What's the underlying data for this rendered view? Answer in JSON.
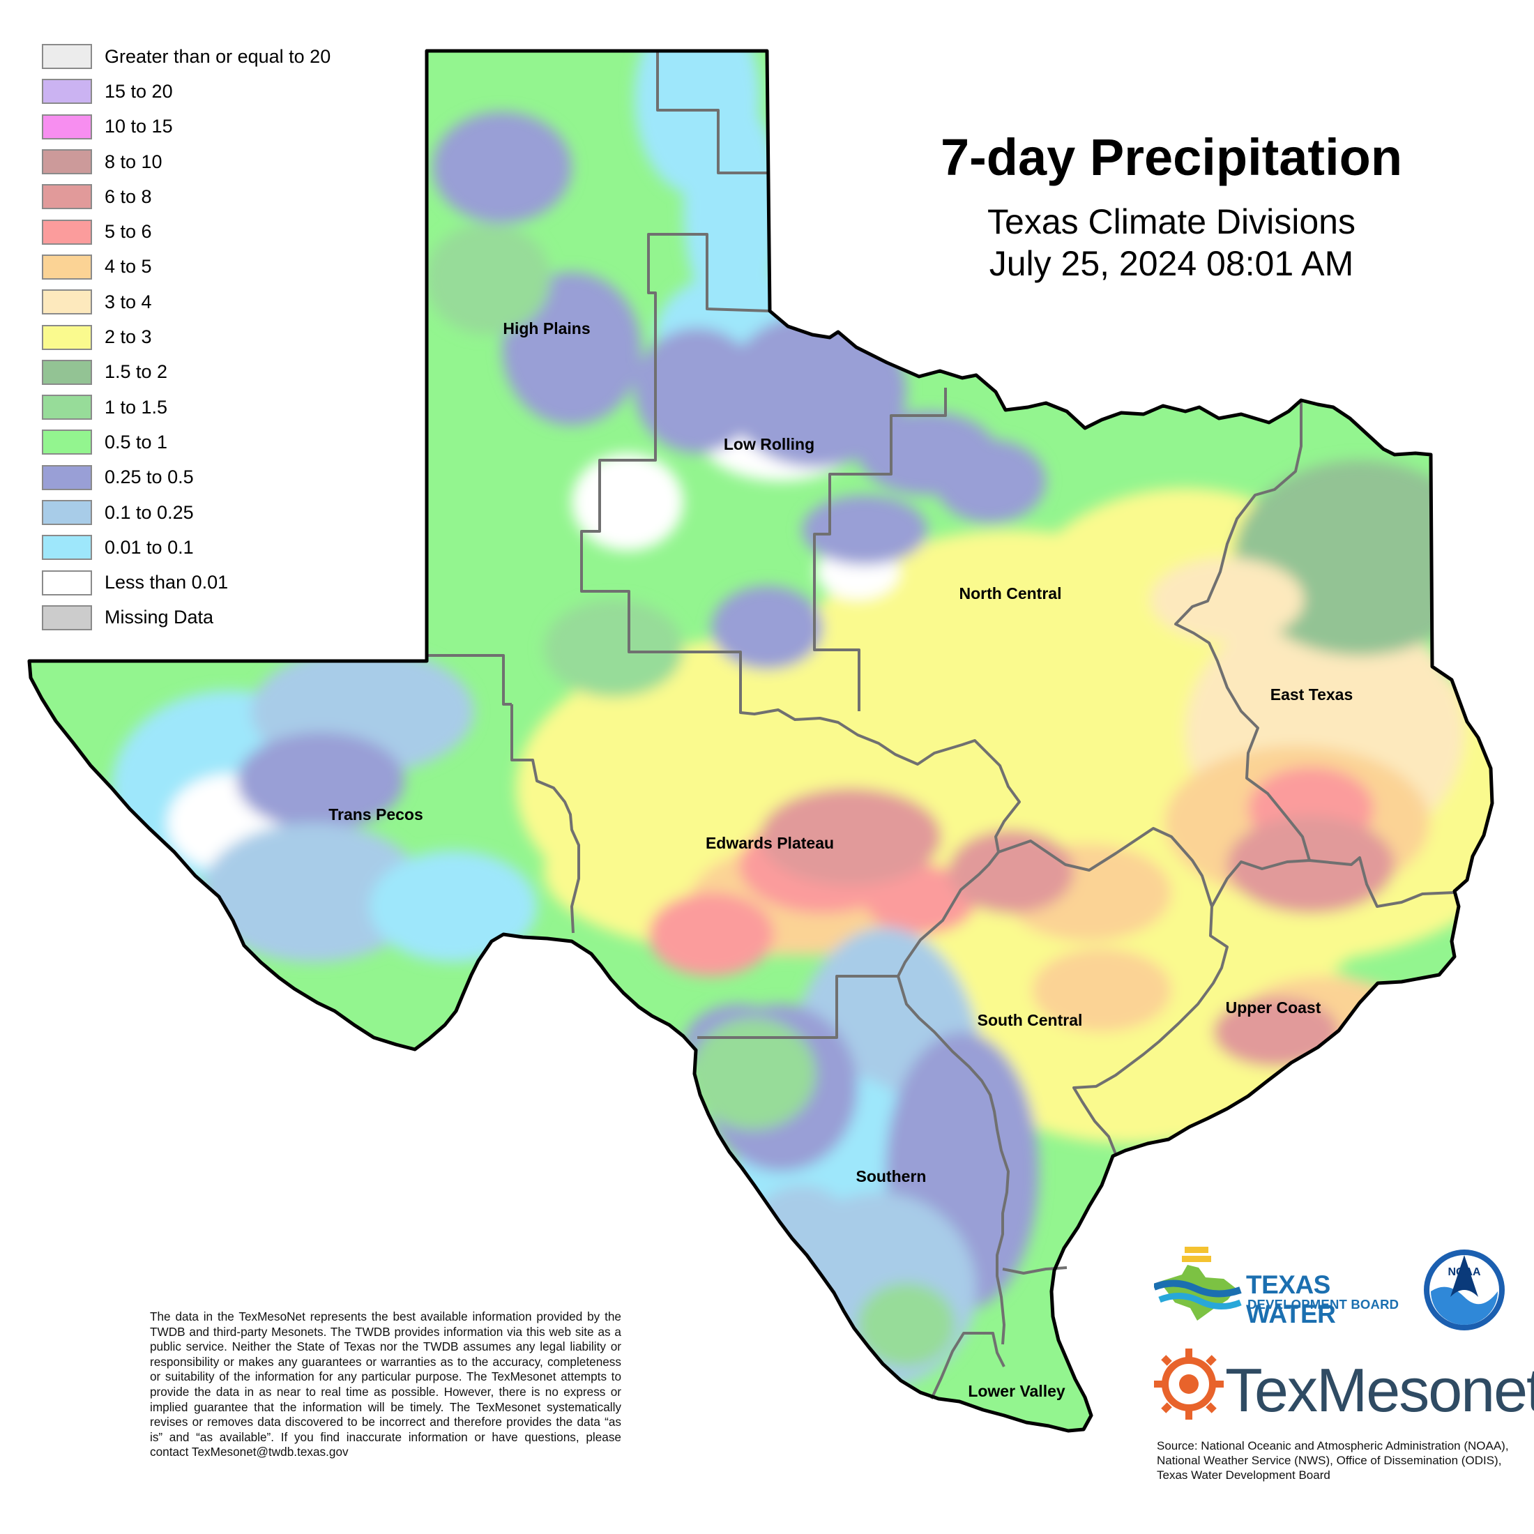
{
  "title": "7-day Precipitation",
  "subtitle": "Texas Climate Divisions",
  "date": "July 25, 2024 08:01 AM",
  "legend": [
    {
      "label": "Greater than or equal to 20",
      "color": "#ececec"
    },
    {
      "label": "15 to 20",
      "color": "#cbb3f2"
    },
    {
      "label": "10 to 15",
      "color": "#f78ef0"
    },
    {
      "label": "8 to 10",
      "color": "#cc9a9a"
    },
    {
      "label": "6 to 8",
      "color": "#e19a9a"
    },
    {
      "label": "5 to 6",
      "color": "#fb9c9c"
    },
    {
      "label": "4 to 5",
      "color": "#fbd395"
    },
    {
      "label": "3 to 4",
      "color": "#fde9bd"
    },
    {
      "label": "2 to 3",
      "color": "#fafa8e"
    },
    {
      "label": "1.5 to 2",
      "color": "#93c394"
    },
    {
      "label": "1 to 1.5",
      "color": "#97dc99"
    },
    {
      "label": "0.5 to 1",
      "color": "#93f58f"
    },
    {
      "label": "0.25 to 0.5",
      "color": "#999fd6"
    },
    {
      "label": "0.1 to 0.25",
      "color": "#a8cce8"
    },
    {
      "label": "0.01 to 0.1",
      "color": "#9ee7fb"
    },
    {
      "label": "Less than 0.01",
      "color": "#ffffff"
    },
    {
      "label": "Missing Data",
      "color": "#cccccc"
    }
  ],
  "regions": {
    "high_plains": "High Plains",
    "low_rolling": "Low Rolling",
    "north_central": "North Central",
    "east_texas": "East Texas",
    "trans_pecos": "Trans Pecos",
    "edwards_plateau": "Edwards Plateau",
    "south_central": "South Central",
    "upper_coast": "Upper Coast",
    "southern": "Southern",
    "lower_valley": "Lower Valley"
  },
  "disclaimer": "The data in the TexMesoNet represents the best available information provided by the TWDB and third-party Mesonets. The TWDB provides information via this web site as a public service. Neither the State of Texas nor the TWDB assumes any legal liability or responsibility or makes any guarantees or warranties as to the accuracy, completeness or suitability of the information for any particular purpose. The TexMesonet attempts to provide the data in as near to real time as possible. However, there is no express or implied guarantee that the information will be timely. The TexMesonet systematically revises or removes data discovered to be incorrect and therefore provides the data “as is” and “as available”. If you find inaccurate information or have questions, please contact TexMesonet@twdb.texas.gov",
  "logos": {
    "twdb_line1": "TEXAS WATER",
    "twdb_line2": "DEVELOPMENT BOARD",
    "noaa": "NOAA",
    "texmesonet": "TexMesonet"
  },
  "source": "Source: National Oceanic and Atmospheric Administration (NOAA), National Weather Service (NWS), Office of Dissemination (ODIS), Texas Water Development Board"
}
